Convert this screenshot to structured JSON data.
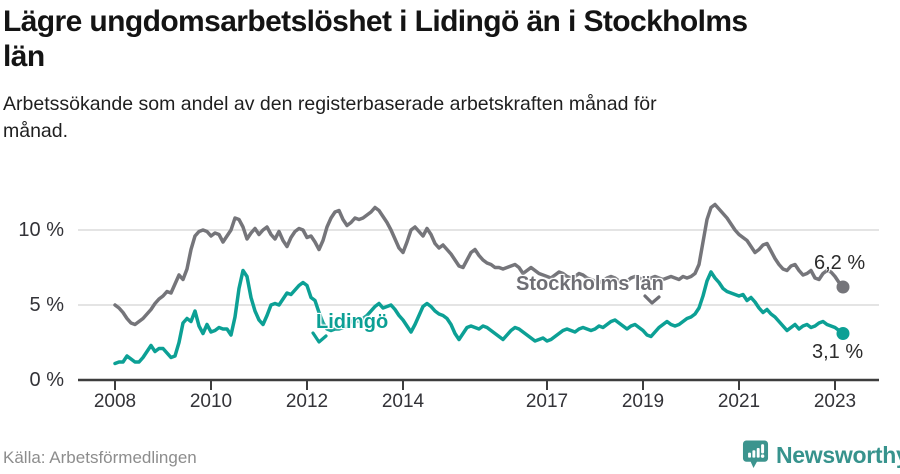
{
  "header": {
    "title": "Lägre ungdomsarbetslöshet i Lidingö än i Stockholms\nlän",
    "subtitle": "Arbetssökande som andel av den registerbaserade arbetskraften månad för\nmånad."
  },
  "chart_data": {
    "type": "line",
    "title": "Lägre ungdomsarbetslöshet i Lidingö än i Stockholms län",
    "subtitle": "Arbetssökande som andel av den registerbaserade arbetskraften månad för månad.",
    "x_unit": "month",
    "x_range": [
      "2008-01",
      "2023-03"
    ],
    "ylim": [
      0,
      12.5
    ],
    "grid": true,
    "grid_y_values": [
      5,
      10
    ],
    "y_tick_labels": [
      "10 %",
      "5 %",
      "0 %"
    ],
    "y_tick_values": [
      10,
      5,
      0
    ],
    "x_tick_labels": [
      "2008",
      "2010",
      "2012",
      "2014",
      "2017",
      "2019",
      "2021",
      "2023"
    ],
    "x_tick_years": [
      2008,
      2010,
      2012,
      2014,
      2017,
      2019,
      2021,
      2023
    ],
    "legend_position": "inline-annotations",
    "series": [
      {
        "name": "Stockholms län",
        "color": "#75757a",
        "end_label": "6,2 %",
        "end_value": 6.2,
        "values": [
          5.0,
          4.8,
          4.5,
          4.1,
          3.8,
          3.7,
          3.9,
          4.1,
          4.4,
          4.7,
          5.1,
          5.4,
          5.6,
          5.9,
          5.8,
          6.4,
          7.0,
          6.7,
          7.4,
          8.7,
          9.6,
          9.9,
          10.0,
          9.9,
          9.6,
          9.8,
          9.7,
          9.2,
          9.6,
          10.0,
          10.8,
          10.7,
          10.2,
          9.4,
          9.8,
          10.1,
          9.7,
          10.0,
          10.2,
          9.7,
          9.4,
          9.9,
          9.3,
          8.9,
          9.5,
          9.9,
          10.1,
          10.0,
          9.5,
          9.6,
          9.2,
          8.7,
          9.3,
          10.2,
          10.8,
          11.2,
          11.3,
          10.7,
          10.3,
          10.5,
          10.8,
          10.7,
          10.8,
          11.0,
          11.2,
          11.5,
          11.3,
          10.9,
          10.5,
          10.0,
          9.4,
          8.8,
          8.5,
          9.2,
          10.0,
          10.2,
          9.9,
          9.6,
          10.1,
          9.7,
          9.1,
          8.8,
          9.0,
          8.7,
          8.4,
          8.0,
          7.6,
          7.5,
          8.0,
          8.5,
          8.7,
          8.3,
          8.0,
          7.8,
          7.7,
          7.5,
          7.5,
          7.4,
          7.5,
          7.6,
          7.7,
          7.5,
          7.1,
          7.3,
          7.5,
          7.3,
          7.1,
          7.0,
          6.9,
          6.8,
          7.0,
          7.2,
          7.1,
          6.9,
          6.8,
          6.9,
          7.1,
          7.0,
          6.8,
          6.7,
          6.6,
          6.5,
          6.6,
          6.8,
          6.9,
          6.8,
          6.6,
          6.5,
          6.6,
          6.8,
          6.9,
          6.8,
          6.7,
          6.6,
          6.8,
          6.9,
          6.8,
          6.7,
          6.8,
          6.9,
          6.8,
          6.7,
          6.9,
          6.8,
          6.9,
          7.1,
          7.7,
          9.2,
          10.7,
          11.5,
          11.7,
          11.4,
          11.1,
          10.8,
          10.4,
          10.0,
          9.7,
          9.5,
          9.3,
          8.9,
          8.5,
          8.7,
          9.0,
          9.1,
          8.6,
          8.1,
          7.7,
          7.4,
          7.3,
          7.6,
          7.7,
          7.3,
          7.0,
          7.1,
          7.3,
          6.8,
          6.7,
          7.1,
          7.3,
          7.2,
          6.9,
          6.5,
          6.2
        ]
      },
      {
        "name": "Lidingö",
        "color": "#0ca095",
        "end_label": "3,1 %",
        "end_value": 3.1,
        "values": [
          1.1,
          1.2,
          1.2,
          1.6,
          1.4,
          1.2,
          1.2,
          1.5,
          1.9,
          2.3,
          1.9,
          2.1,
          2.1,
          1.8,
          1.5,
          1.6,
          2.5,
          3.8,
          4.1,
          3.9,
          4.6,
          3.6,
          3.1,
          3.7,
          3.2,
          3.3,
          3.5,
          3.4,
          3.4,
          3.0,
          4.2,
          6.1,
          7.3,
          6.9,
          5.5,
          4.6,
          4.0,
          3.7,
          4.3,
          5.0,
          5.1,
          5.0,
          5.4,
          5.8,
          5.7,
          6.0,
          6.3,
          6.5,
          6.3,
          5.5,
          5.3,
          4.5,
          3.8,
          3.4,
          3.3,
          3.4,
          3.4,
          3.5,
          3.6,
          3.9,
          4.0,
          3.9,
          4.1,
          4.3,
          4.6,
          4.9,
          5.1,
          4.8,
          4.9,
          5.0,
          4.7,
          4.3,
          4.0,
          3.6,
          3.2,
          3.7,
          4.3,
          4.9,
          5.1,
          4.9,
          4.6,
          4.4,
          4.3,
          4.1,
          3.7,
          3.1,
          2.7,
          3.1,
          3.5,
          3.6,
          3.5,
          3.4,
          3.6,
          3.5,
          3.3,
          3.1,
          2.9,
          2.7,
          3.0,
          3.3,
          3.5,
          3.4,
          3.2,
          3.0,
          2.8,
          2.6,
          2.7,
          2.8,
          2.6,
          2.7,
          2.9,
          3.1,
          3.3,
          3.4,
          3.3,
          3.2,
          3.4,
          3.5,
          3.4,
          3.3,
          3.4,
          3.6,
          3.5,
          3.7,
          3.9,
          4.0,
          3.8,
          3.6,
          3.4,
          3.6,
          3.7,
          3.5,
          3.3,
          3.0,
          2.9,
          3.2,
          3.5,
          3.7,
          3.9,
          3.7,
          3.6,
          3.7,
          3.9,
          4.1,
          4.2,
          4.4,
          4.8,
          5.6,
          6.6,
          7.2,
          6.8,
          6.5,
          6.1,
          5.9,
          5.8,
          5.7,
          5.6,
          5.7,
          5.3,
          5.5,
          5.2,
          4.8,
          4.5,
          4.7,
          4.4,
          4.2,
          3.9,
          3.6,
          3.3,
          3.5,
          3.7,
          3.4,
          3.6,
          3.7,
          3.5,
          3.6,
          3.8,
          3.9,
          3.7,
          3.6,
          3.5,
          3.3,
          3.1
        ]
      }
    ]
  },
  "annotations": {
    "stockholm_label": "Stockholms län",
    "lidingo_label": "Lidingö",
    "end_label_stockholm": "6,2 %",
    "end_label_lidingo": "3,1 %"
  },
  "footer": {
    "source": "Källa: Arbetsförmedlingen",
    "brand_name": "Newsworthy"
  },
  "colors": {
    "stockholm_line": "#75757a",
    "lidingo_line": "#0ca095",
    "gridline": "#dcdcdc",
    "axis": "#3d3d3d",
    "tick_text": "#333338",
    "title_text": "#141414",
    "source_text": "#8d8d8d",
    "brand_teal": "#37938d"
  }
}
